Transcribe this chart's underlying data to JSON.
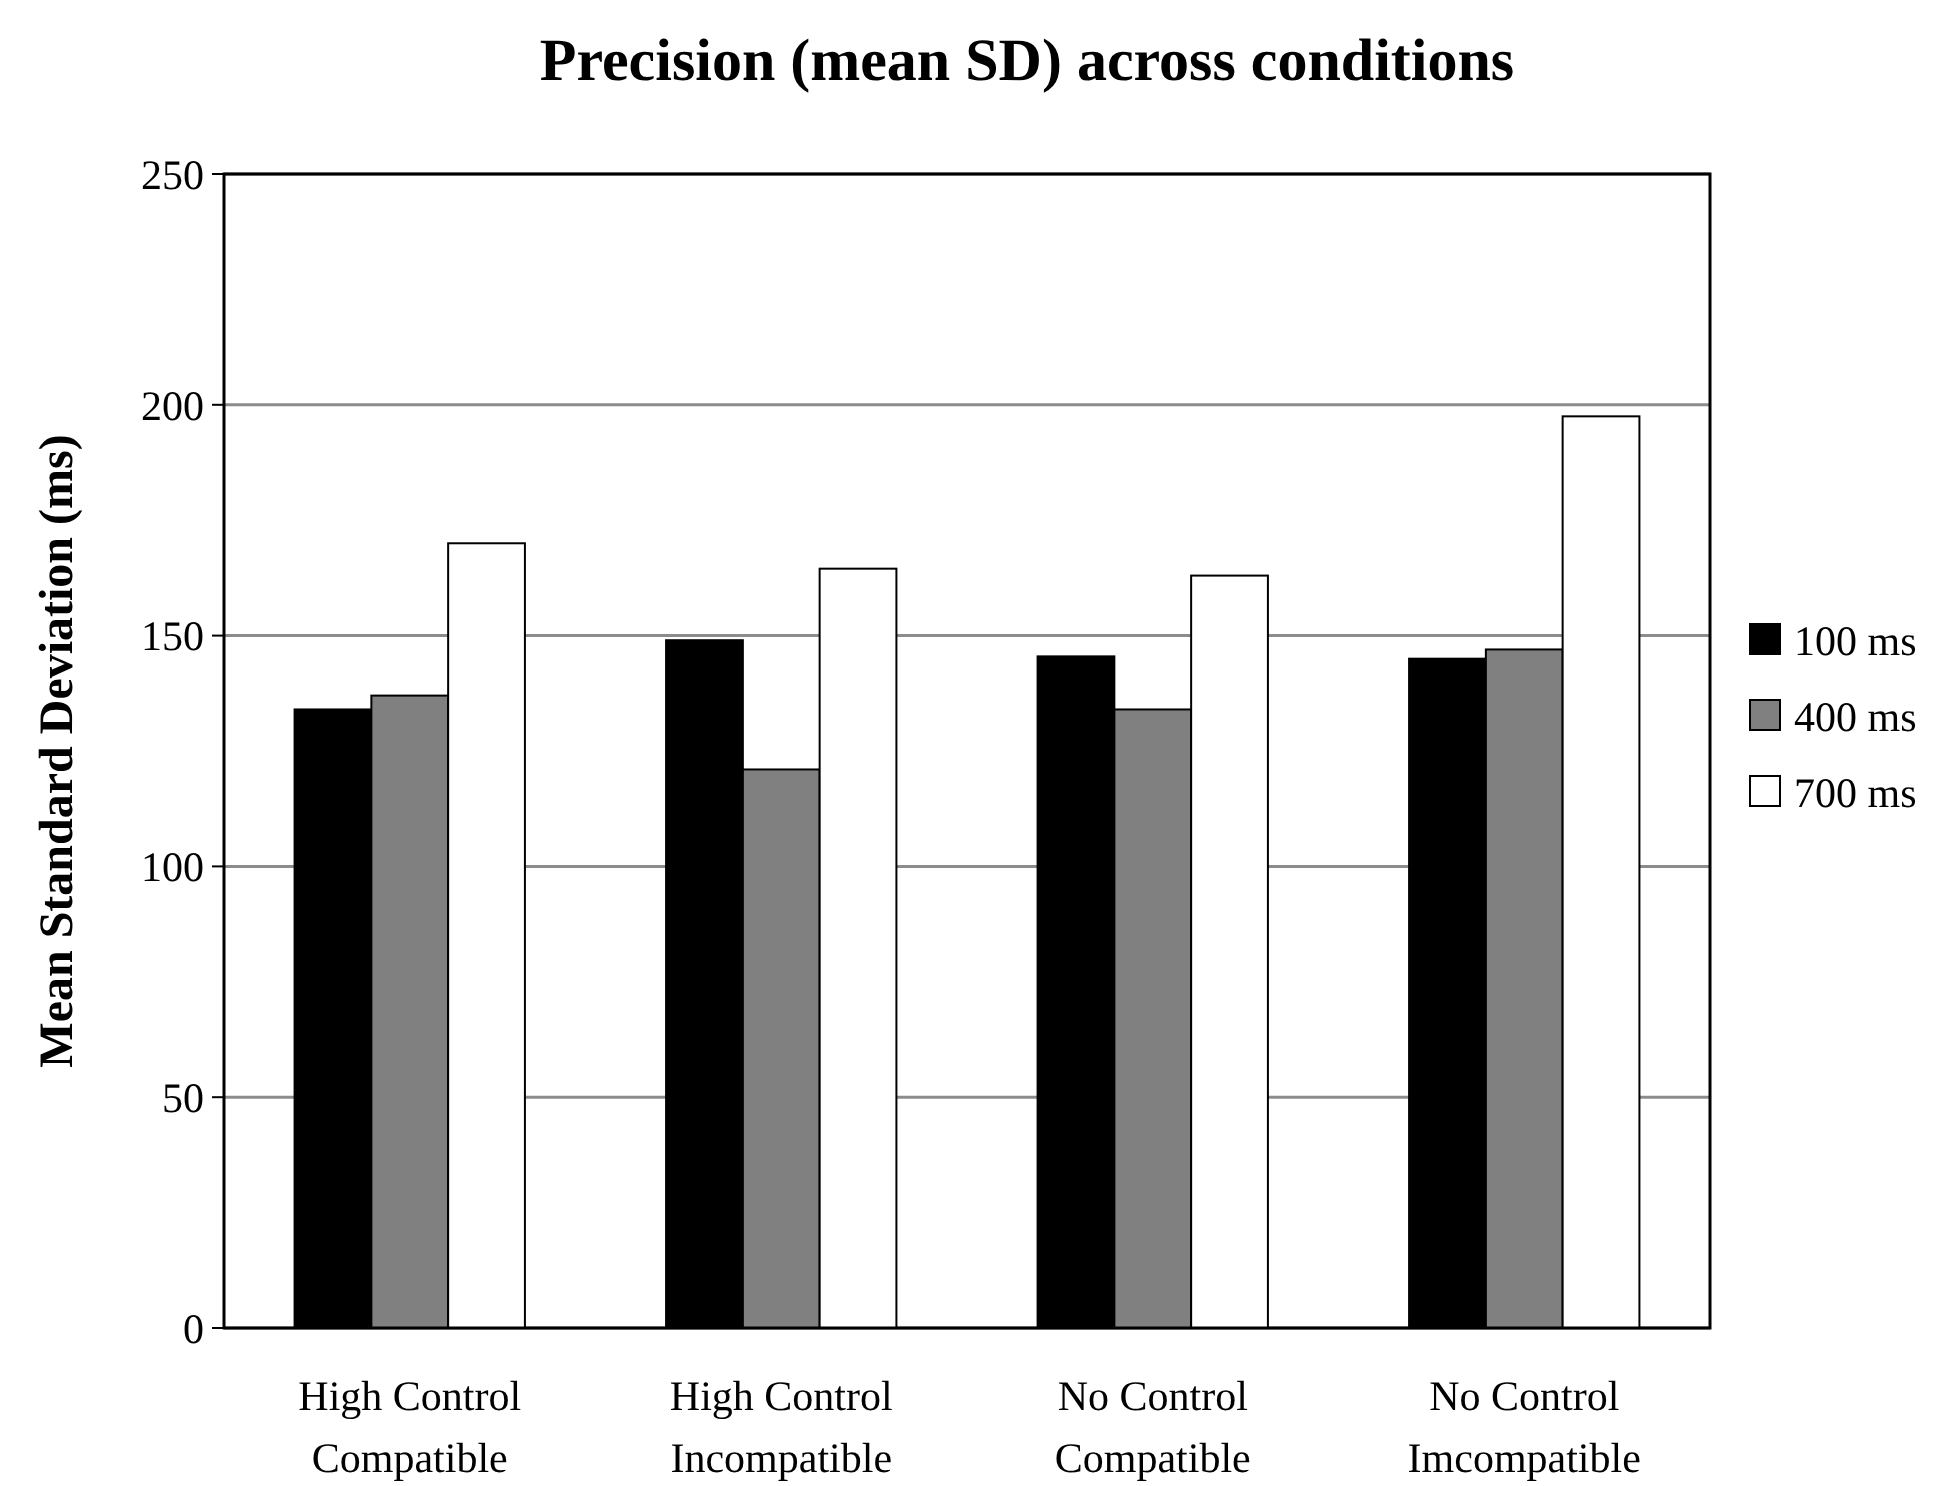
{
  "chart_data": {
    "type": "bar",
    "title": "Precision (mean SD) across conditions",
    "ylabel": "Mean Standard Deviation (ms)",
    "categories": [
      "High Control Compatible",
      "High Control Incompatible",
      "No Control Compatible",
      "No Control Imcompatible"
    ],
    "series": [
      {
        "name": "100 ms",
        "color": "#000000",
        "values": [
          134,
          149,
          145.5,
          145
        ]
      },
      {
        "name": "400 ms",
        "color": "#808080",
        "values": [
          137,
          121,
          134,
          147
        ]
      },
      {
        "name": "700 ms",
        "color": "#ffffff",
        "values": [
          170,
          164.5,
          163,
          197.5
        ]
      }
    ],
    "ylim": [
      0,
      250
    ],
    "yticks": [
      0,
      50,
      100,
      150,
      200,
      250
    ],
    "grid": "y",
    "legend": "right"
  }
}
